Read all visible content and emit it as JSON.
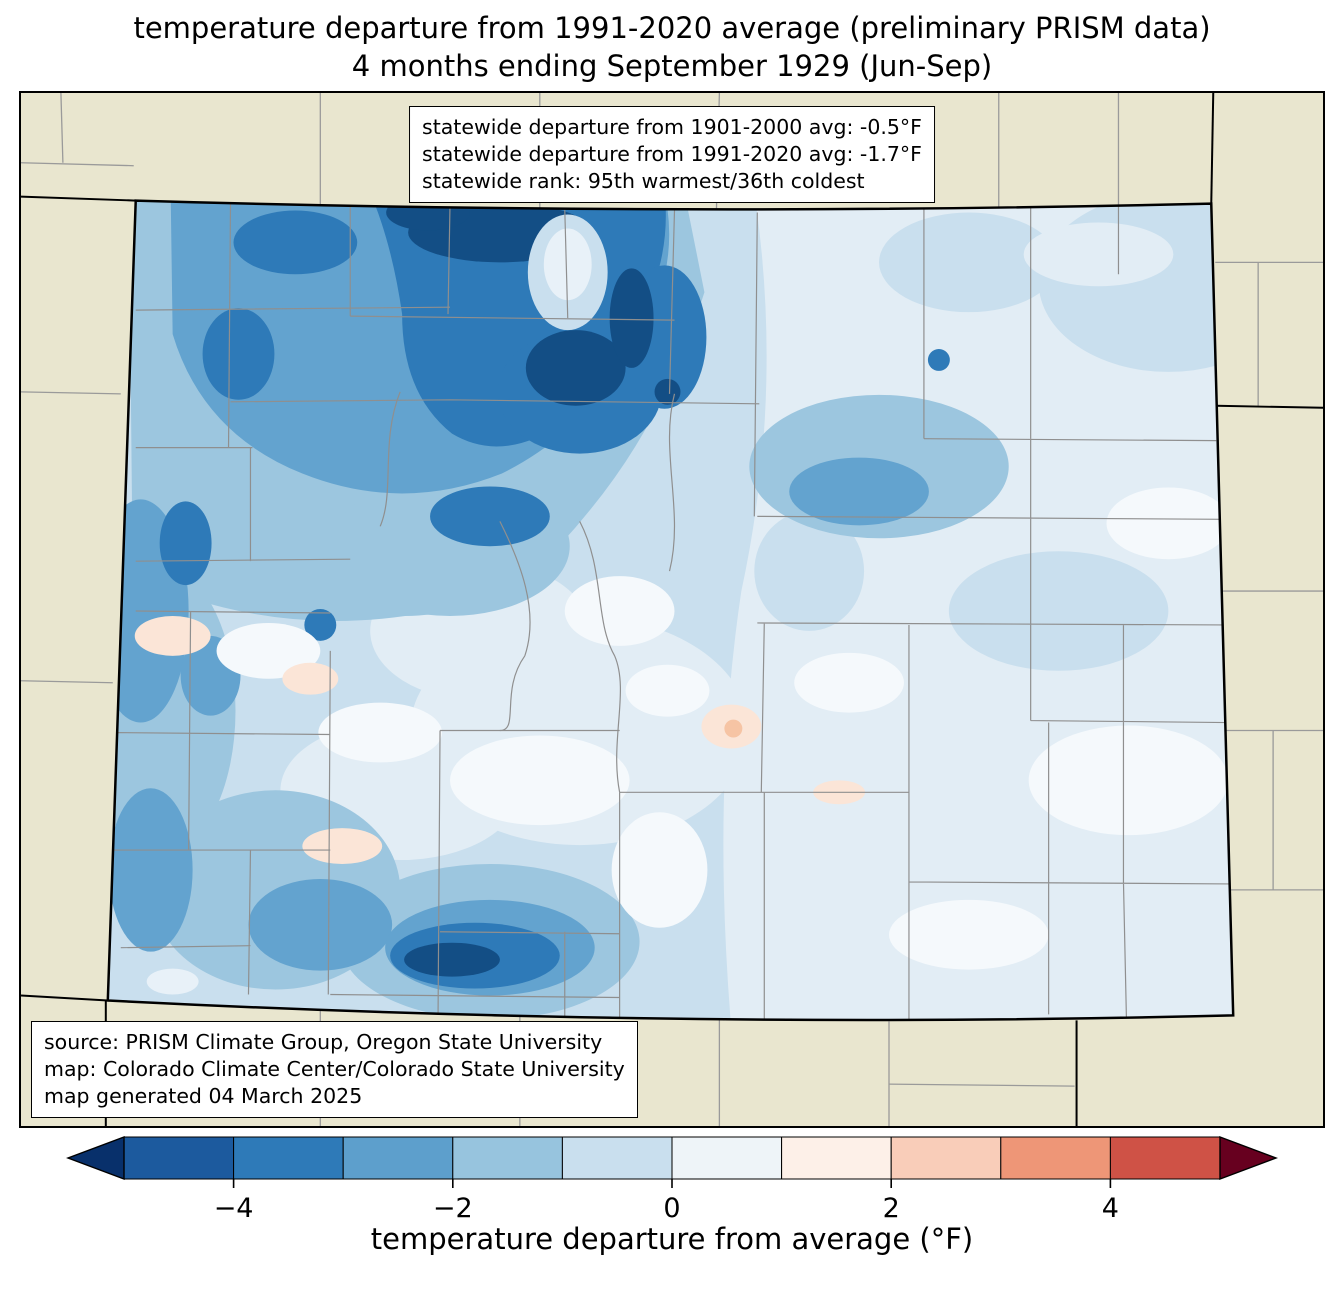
{
  "title": {
    "line1": "temperature departure from 1991-2020 average (preliminary PRISM data)",
    "line2": "4 months ending September 1929 (Jun-Sep)"
  },
  "stats_box": {
    "lines": [
      "statewide departure from 1901-2000 avg: -0.5°F",
      "statewide departure from 1991-2020 avg: -1.7°F",
      "statewide rank: 95th warmest/36th coldest"
    ]
  },
  "source_box": {
    "lines": [
      "source: PRISM Climate Group, Oregon State University",
      "map: Colorado Climate Center/Colorado State University",
      "map generated 04 March 2025"
    ]
  },
  "colorbar": {
    "label": "temperature departure from average (°F)",
    "range": [
      -5,
      5
    ],
    "ticks": [
      {
        "label": "−4",
        "value": -4
      },
      {
        "label": "−2",
        "value": -2
      },
      {
        "label": "0",
        "value": 0
      },
      {
        "label": "2",
        "value": 2
      },
      {
        "label": "4",
        "value": 4
      }
    ],
    "arrow_left_color": "#08306b",
    "arrow_right_color": "#67001f",
    "segment_colors": [
      "#1c5a9e",
      "#2e7ab8",
      "#5d9fcc",
      "#97c4de",
      "#c9dfee",
      "#eef4f8",
      "#fdf0e8",
      "#f9cdb9",
      "#ee9677",
      "#cf5246"
    ]
  },
  "map": {
    "region": "Colorado",
    "outside_fill": "#e9e6cf",
    "state_border_color": "#000000",
    "county_line_color": "#8f8f8f",
    "fill_levels": {
      "deep_blue": "#134e85",
      "dark_blue": "#2e7ab8",
      "medium_blue": "#63a3cf",
      "light_medium_blue": "#9cc6df",
      "light_blue": "#c9dfee",
      "pale_blue": "#e2edf5",
      "near_white": "#f5f9fc",
      "pale_salmon": "#fbe5d7",
      "salmon": "#f6c4a4"
    }
  }
}
